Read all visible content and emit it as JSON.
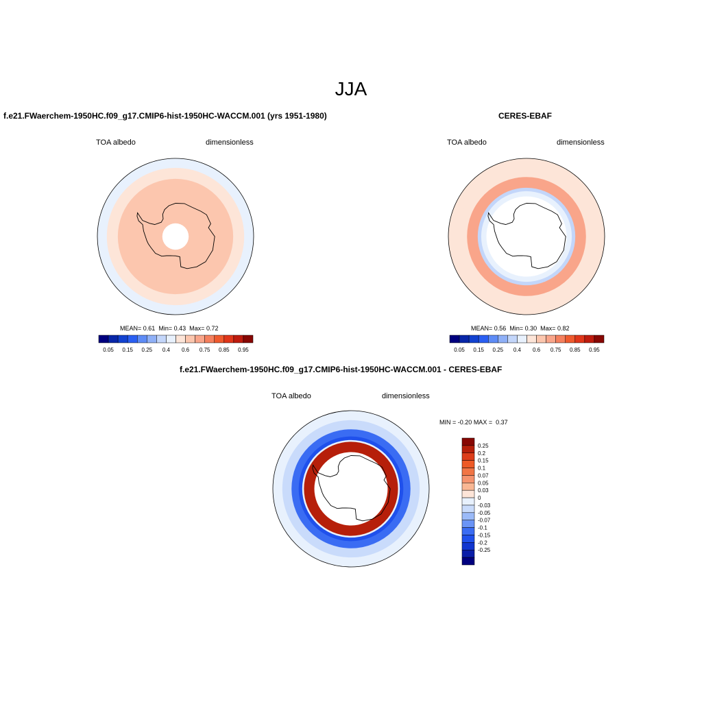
{
  "figure": {
    "title": "JJA"
  },
  "colors": {
    "abs_scale": [
      "#00007f",
      "#0826a8",
      "#1242d0",
      "#2a5ff2",
      "#5e8cf6",
      "#8fb0f7",
      "#c3d6fa",
      "#e8f1fd",
      "#fde5d8",
      "#fcc6ae",
      "#f9a58a",
      "#f5805e",
      "#ef5a2e",
      "#e0361a",
      "#be1b0e",
      "#870703"
    ],
    "diff_scale": [
      "#00007f",
      "#0a1ea8",
      "#1136d0",
      "#1f50ec",
      "#3a6cf3",
      "#6a94f6",
      "#9bbaf8",
      "#c9dbfb",
      "#e8f1fd",
      "#fde5d8",
      "#f9b794",
      "#f5936e",
      "#f17545",
      "#ee5a26",
      "#dd3d1a",
      "#b61f0a",
      "#870703"
    ],
    "coastline": "#000000"
  },
  "chart_data": [
    {
      "type": "heatmap",
      "projection": "south-polar-stereographic",
      "title": "f.e21.FWaerchem-1950HC.f09_g17.CMIP6-hist-1950HC-WACCM.001 (yrs 1951-1980)",
      "left_label": "TOA albedo",
      "right_label": "dimensionless",
      "stats": {
        "mean_label": "MEAN=",
        "mean": "0.61",
        "min_label": "Min=",
        "min": "0.43",
        "max_label": "Max=",
        "max": "0.72"
      },
      "colorbar": {
        "levels": [
          0.05,
          0.1,
          0.15,
          0.2,
          0.25,
          0.3,
          0.4,
          0.5,
          0.6,
          0.65,
          0.75,
          0.8,
          0.85,
          0.9,
          0.95
        ],
        "tick_labels": [
          "0.05",
          "0.15",
          "0.25",
          "0.4",
          "0.6",
          "0.75",
          "0.85",
          "0.95"
        ]
      },
      "zones": [
        {
          "from_lat": -90,
          "to_lat": -82,
          "value": null
        },
        {
          "from_lat": -82,
          "to_lat": -56,
          "value": 0.62
        },
        {
          "from_lat": -56,
          "to_lat": -50,
          "value": 0.57
        },
        {
          "from_lat": -50,
          "to_lat": -45,
          "value": 0.45
        }
      ]
    },
    {
      "type": "heatmap",
      "projection": "south-polar-stereographic",
      "title": "CERES-EBAF",
      "left_label": "TOA albedo",
      "right_label": "dimensionless",
      "stats": {
        "mean_label": "MEAN=",
        "mean": "0.56",
        "min_label": "Min=",
        "min": "0.30",
        "max_label": "Max=",
        "max": "0.82"
      },
      "colorbar": {
        "levels": [
          0.05,
          0.1,
          0.15,
          0.2,
          0.25,
          0.3,
          0.4,
          0.5,
          0.6,
          0.65,
          0.75,
          0.8,
          0.85,
          0.9,
          0.95
        ],
        "tick_labels": [
          "0.05",
          "0.15",
          "0.25",
          "0.4",
          "0.6",
          "0.75",
          "0.85",
          "0.95"
        ]
      },
      "zones": [
        {
          "from_lat": -90,
          "to_lat": -66,
          "value": null
        },
        {
          "from_lat": -66,
          "to_lat": -63,
          "value": 0.45
        },
        {
          "from_lat": -63,
          "to_lat": -61,
          "value": 0.35
        },
        {
          "from_lat": -61,
          "to_lat": -59,
          "value": 0.72
        },
        {
          "from_lat": -59,
          "to_lat": -55,
          "value": 0.66
        },
        {
          "from_lat": -55,
          "to_lat": -50,
          "value": 0.57
        },
        {
          "from_lat": -50,
          "to_lat": -45,
          "value": 0.55
        }
      ]
    },
    {
      "type": "heatmap",
      "projection": "south-polar-stereographic",
      "title": "f.e21.FWaerchem-1950HC.f09_g17.CMIP6-hist-1950HC-WACCM.001 - CERES-EBAF",
      "left_label": "TOA albedo",
      "right_label": "dimensionless",
      "stats": {
        "min_label": "MIN =",
        "min": "-0.20",
        "max_label": "MAX =",
        "max": "0.37"
      },
      "colorbar": {
        "orientation": "vertical",
        "levels": [
          -0.25,
          -0.2,
          -0.15,
          -0.1,
          -0.07,
          -0.05,
          -0.03,
          0,
          0.03,
          0.05,
          0.07,
          0.1,
          0.15,
          0.2,
          0.25
        ],
        "tick_labels": [
          "0.25",
          "0.2",
          "0.15",
          "0.1",
          "0.07",
          "0.05",
          "0.03",
          "0",
          "-0.03",
          "-0.05",
          "-0.07",
          "-0.1",
          "-0.15",
          "-0.2",
          "-0.25"
        ]
      },
      "zones": [
        {
          "from_lat": -90,
          "to_lat": -68,
          "value": null
        },
        {
          "from_lat": -68,
          "to_lat": -62,
          "value": 0.3
        },
        {
          "from_lat": -62,
          "to_lat": -61,
          "value": 0.02
        },
        {
          "from_lat": -61,
          "to_lat": -59,
          "value": -0.12
        },
        {
          "from_lat": -59,
          "to_lat": -55,
          "value": -0.08
        },
        {
          "from_lat": -55,
          "to_lat": -50,
          "value": -0.03
        },
        {
          "from_lat": -50,
          "to_lat": -45,
          "value": 0.01
        }
      ]
    }
  ]
}
